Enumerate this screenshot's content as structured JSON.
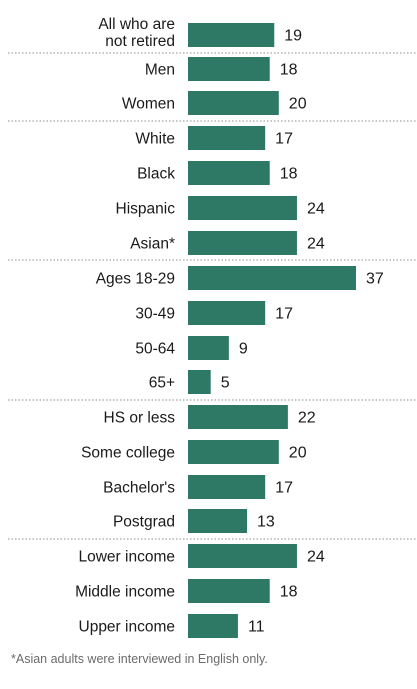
{
  "chart_data": {
    "type": "bar",
    "orientation": "horizontal",
    "categories": [
      [
        "All who are",
        "not retired"
      ],
      "Men",
      "Women",
      "White",
      "Black",
      "Hispanic",
      "Asian*",
      "Ages 18-29",
      "30-49",
      "50-64",
      "65+",
      "HS or less",
      "Some college",
      "Bachelor's",
      "Postgrad",
      "Lower income",
      "Middle income",
      "Upper income"
    ],
    "values": [
      19,
      18,
      20,
      17,
      18,
      24,
      24,
      37,
      17,
      9,
      5,
      22,
      20,
      17,
      13,
      24,
      18,
      11
    ],
    "value_labels": [
      "19",
      "18",
      "20",
      "17",
      "18",
      "24",
      "24",
      "37",
      "17",
      "9",
      "5",
      "22",
      "20",
      "17",
      "13",
      "24",
      "18",
      "11"
    ],
    "groups": [
      [
        0
      ],
      [
        1,
        2
      ],
      [
        3,
        4,
        5,
        6
      ],
      [
        7,
        8,
        9,
        10
      ],
      [
        11,
        12,
        13,
        14
      ],
      [
        15,
        16,
        17
      ]
    ],
    "bar_color": "#2e7866",
    "separator_style": "dotted",
    "xlim": [
      0,
      37
    ]
  },
  "footnote": "*Asian adults were interviewed in English only."
}
